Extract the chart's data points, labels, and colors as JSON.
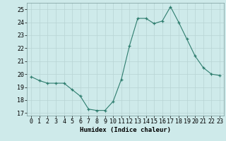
{
  "x": [
    0,
    1,
    2,
    3,
    4,
    5,
    6,
    7,
    8,
    9,
    10,
    11,
    12,
    13,
    14,
    15,
    16,
    17,
    18,
    19,
    20,
    21,
    22,
    23
  ],
  "y": [
    19.8,
    19.5,
    19.3,
    19.3,
    19.3,
    18.8,
    18.3,
    17.3,
    17.2,
    17.2,
    17.9,
    19.6,
    22.2,
    24.3,
    24.3,
    23.9,
    24.1,
    25.2,
    24.0,
    22.7,
    21.4,
    20.5,
    20.0,
    19.9
  ],
  "line_color": "#2e7d6e",
  "marker": "+",
  "marker_size": 3,
  "bg_color": "#ceeaea",
  "grid_color": "#b8d4d4",
  "xlabel": "Humidex (Indice chaleur)",
  "ylim": [
    16.8,
    25.5
  ],
  "yticks": [
    17,
    18,
    19,
    20,
    21,
    22,
    23,
    24,
    25
  ],
  "xticks": [
    0,
    1,
    2,
    3,
    4,
    5,
    6,
    7,
    8,
    9,
    10,
    11,
    12,
    13,
    14,
    15,
    16,
    17,
    18,
    19,
    20,
    21,
    22,
    23
  ],
  "label_fontsize": 6.5,
  "tick_fontsize": 6
}
